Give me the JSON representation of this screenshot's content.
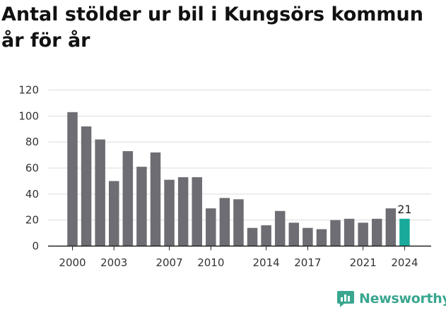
{
  "title": "Antal stölder ur bil i Kungsörs kommun år för år",
  "brand": {
    "name": "Newsworthy",
    "color": "#3aa68f"
  },
  "chart_data": {
    "type": "bar",
    "categories": [
      "2000",
      "2001",
      "2002",
      "2003",
      "2004",
      "2005",
      "2006",
      "2007",
      "2008",
      "2009",
      "2010",
      "2011",
      "2012",
      "2013",
      "2014",
      "2015",
      "2016",
      "2017",
      "2018",
      "2019",
      "2020",
      "2021",
      "2022",
      "2023",
      "2024"
    ],
    "values": [
      103,
      92,
      82,
      50,
      73,
      61,
      72,
      51,
      53,
      53,
      29,
      37,
      36,
      14,
      16,
      27,
      18,
      14,
      13,
      20,
      21,
      18,
      21,
      29,
      21
    ],
    "x_tick_labels": [
      "2000",
      "2003",
      "2007",
      "2010",
      "2014",
      "2017",
      "2021",
      "2024"
    ],
    "y_ticks": [
      0,
      20,
      40,
      60,
      80,
      100,
      120
    ],
    "ylim": [
      0,
      120
    ],
    "grid": true,
    "highlight": {
      "category": "2024",
      "label": "21"
    },
    "colors": {
      "bar": "#6e6d73",
      "highlight": "#18a99a",
      "grid": "#dcdcdc",
      "axis": "#222222"
    }
  }
}
